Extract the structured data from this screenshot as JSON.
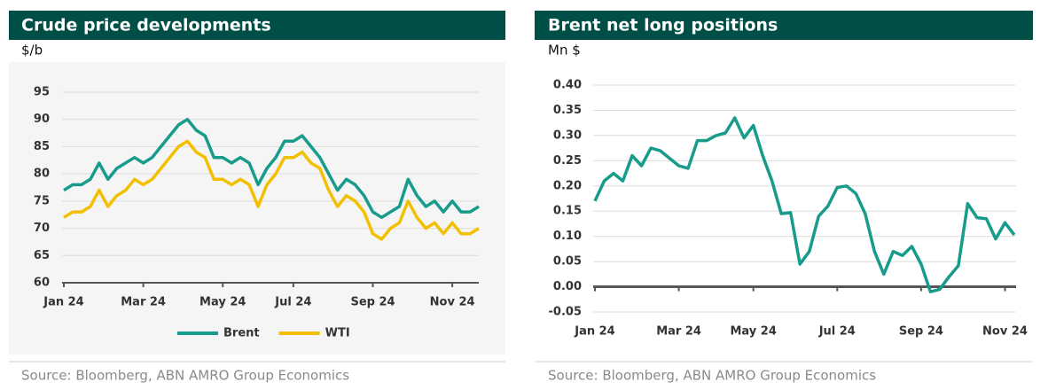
{
  "chart_data": [
    {
      "type": "line",
      "title": "Crude price developments",
      "y_label": "$/b",
      "source": "Source: Bloomberg, ABN AMRO Group Economics",
      "categories": [
        "Jan 24",
        null,
        null,
        null,
        null,
        null,
        null,
        null,
        null,
        "Mar 24",
        null,
        null,
        null,
        null,
        null,
        null,
        null,
        null,
        "May 24",
        null,
        null,
        null,
        null,
        null,
        null,
        null,
        "Jul 24",
        null,
        null,
        null,
        null,
        null,
        null,
        null,
        null,
        "Sep 24",
        null,
        null,
        null,
        null,
        null,
        null,
        null,
        null,
        "Nov 24",
        null,
        null,
        null
      ],
      "series": [
        {
          "name": "Brent",
          "color": "#179b8b",
          "values": [
            77,
            78,
            78,
            79,
            82,
            79,
            81,
            82,
            83,
            82,
            83,
            85,
            87,
            89,
            90,
            88,
            87,
            83,
            83,
            82,
            83,
            82,
            78,
            81,
            83,
            86,
            86,
            87,
            85,
            83,
            80,
            77,
            79,
            78,
            76,
            73,
            72,
            73,
            74,
            79,
            76,
            74,
            75,
            73,
            75,
            73,
            73,
            74
          ]
        },
        {
          "name": "WTI",
          "color": "#f2c000",
          "values": [
            72,
            73,
            73,
            74,
            77,
            74,
            76,
            77,
            79,
            78,
            79,
            81,
            83,
            85,
            86,
            84,
            83,
            79,
            79,
            78,
            79,
            78,
            74,
            78,
            80,
            83,
            83,
            84,
            82,
            81,
            77,
            74,
            76,
            75,
            73,
            69,
            68,
            70,
            71,
            75,
            72,
            70,
            71,
            69,
            71,
            69,
            69,
            70
          ]
        }
      ],
      "ylim": [
        60,
        95
      ],
      "yticks": [
        60,
        65,
        70,
        75,
        80,
        85,
        90,
        95
      ],
      "grid": true,
      "legend": "bottom"
    },
    {
      "type": "line",
      "title": "Brent net long positions",
      "y_label": "Mn $",
      "source": "Source: Bloomberg, ABN AMRO Group Economics",
      "categories": [
        "Jan 24",
        null,
        null,
        null,
        null,
        null,
        null,
        null,
        null,
        "Mar 24",
        null,
        null,
        null,
        null,
        null,
        null,
        null,
        "May 24",
        null,
        null,
        null,
        null,
        null,
        null,
        null,
        null,
        "Jul 24",
        null,
        null,
        null,
        null,
        null,
        null,
        null,
        null,
        "Sep 24",
        null,
        null,
        null,
        null,
        null,
        null,
        null,
        null,
        "Nov 24",
        null
      ],
      "color": "#179b8b",
      "values": [
        0.17,
        0.21,
        0.225,
        0.21,
        0.26,
        0.24,
        0.275,
        0.27,
        0.255,
        0.24,
        0.235,
        0.29,
        0.29,
        0.3,
        0.305,
        0.335,
        0.295,
        0.32,
        0.26,
        0.21,
        0.145,
        0.147,
        0.045,
        0.07,
        0.14,
        0.16,
        0.197,
        0.2,
        0.185,
        0.145,
        0.07,
        0.025,
        0.07,
        0.062,
        0.08,
        0.045,
        -0.01,
        -0.005,
        0.02,
        0.042,
        0.165,
        0.137,
        0.135,
        0.095,
        0.127,
        0.103
      ],
      "ylim": [
        -0.05,
        0.4
      ],
      "yticks": [
        -0.05,
        {
          "value": 0,
          "label": "0.00"
        },
        0.05,
        {
          "value": 0.1,
          "label": "0.10"
        },
        0.15,
        {
          "value": 0.2,
          "label": "0.20"
        },
        0.25,
        {
          "value": 0.3,
          "label": "0.30"
        },
        0.35,
        {
          "value": 0.4,
          "label": "0.40"
        }
      ],
      "grid": true
    }
  ]
}
